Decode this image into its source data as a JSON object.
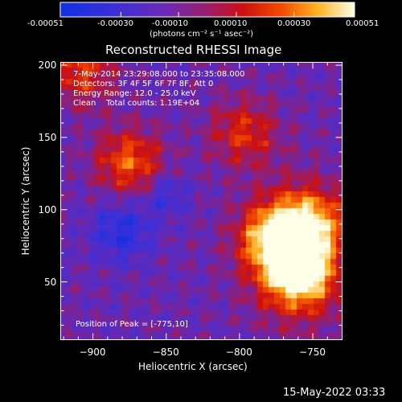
{
  "colorbar": {
    "tick_labels": [
      "-0.00051",
      "-0.00030",
      "-0.00010",
      "0.00010",
      "0.00030",
      "0.00051"
    ],
    "unit_label": "(photons cm⁻² s⁻¹ asec⁻²)",
    "min": -0.00051,
    "max": 0.00051
  },
  "title": "Reconstructed RHESSI Image",
  "info": {
    "time_range": "7-May-2014 23:29:08.000 to 23:35:08.000",
    "detectors": "Detectors: 3F 4F 5F 6F 7F 8F, Att 0",
    "energy": "Energy Range: 12.0 - 25.0 keV",
    "clean": "Clean    Total counts: 1.19E+04"
  },
  "peak_label": "Position of Peak = [-775,10]",
  "axes": {
    "xlabel": "Heliocentric X (arcsec)",
    "ylabel": "Heliocentric Y (arcsec)",
    "xlim": [
      -922,
      -730
    ],
    "ylim": [
      10,
      202
    ],
    "xticks": [
      -900,
      -850,
      -800,
      -750
    ],
    "yticks": [
      50,
      100,
      150,
      200
    ],
    "xtick_labels": [
      "−900",
      "−850",
      "−800",
      "−750"
    ],
    "ytick_labels": [
      "50",
      "100",
      "150",
      "200"
    ]
  },
  "timestamp": "15-May-2022 03:33",
  "chart_data": {
    "type": "heatmap",
    "title": "Reconstructed RHESSI Image",
    "xlabel": "Heliocentric X (arcsec)",
    "ylabel": "Heliocentric Y (arcsec)",
    "xlim": [
      -922,
      -730
    ],
    "ylim": [
      10,
      202
    ],
    "colorbar_range": [
      -0.00051,
      0.00051
    ],
    "peak": [
      -775,
      10
    ],
    "sources": [
      {
        "x": -760,
        "y": 55,
        "value": 0.00051
      },
      {
        "x": -777,
        "y": 80,
        "value": 0.00045
      },
      {
        "x": -753,
        "y": 90,
        "value": 0.0004
      },
      {
        "x": -875,
        "y": 133,
        "value": 0.00036
      },
      {
        "x": -797,
        "y": 153,
        "value": 0.00028
      },
      {
        "x": -908,
        "y": 195,
        "value": 0.0003
      }
    ]
  }
}
